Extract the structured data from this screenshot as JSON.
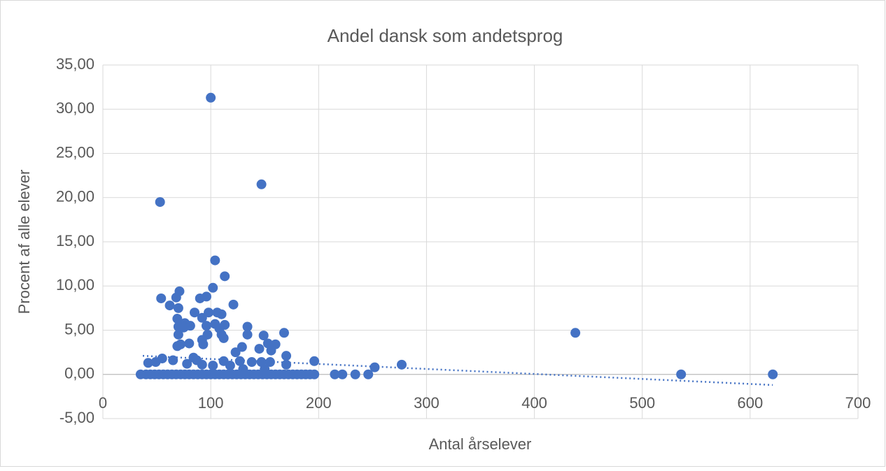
{
  "chart_data": {
    "type": "scatter",
    "title": "Andel dansk som andetsprog",
    "x_label": "Antal årselever",
    "y_label": "Procent af alle elever",
    "color": "#4472c4",
    "grid": true,
    "xlim": [
      0,
      700
    ],
    "xticks": [
      0,
      100,
      200,
      300,
      400,
      500,
      600,
      700
    ],
    "ylim": [
      -5,
      35
    ],
    "yticks": [
      {
        "value": -5,
        "label": "-5,00"
      },
      {
        "value": 0,
        "label": "0,00"
      },
      {
        "value": 5,
        "label": "5,00"
      },
      {
        "value": 10,
        "label": "10,00"
      },
      {
        "value": 15,
        "label": "15,00"
      },
      {
        "value": 20,
        "label": "20,00"
      },
      {
        "value": 25,
        "label": "25,00"
      },
      {
        "value": 30,
        "label": "30,00"
      },
      {
        "value": 35,
        "label": "35,00"
      }
    ],
    "x": [
      100,
      147,
      53,
      104,
      113,
      102,
      71,
      54,
      90,
      96,
      68,
      121,
      62,
      70,
      85,
      98,
      106,
      110,
      69,
      92,
      76,
      81,
      70,
      96,
      104,
      113,
      134,
      75,
      108,
      149,
      168,
      438,
      70,
      97,
      110,
      134,
      112,
      92,
      93,
      72,
      69,
      80,
      153,
      160,
      129,
      145,
      156,
      123,
      170,
      84,
      55,
      65,
      87,
      112,
      127,
      138,
      147,
      155,
      196,
      42,
      49,
      78,
      92,
      102,
      118,
      170,
      277,
      252,
      130,
      150,
      35,
      40,
      44,
      48,
      52,
      56,
      60,
      64,
      68,
      72,
      76,
      80,
      84,
      88,
      92,
      96,
      100,
      104,
      108,
      112,
      116,
      120,
      124,
      128,
      132,
      136,
      140,
      144,
      148,
      152,
      156,
      160,
      164,
      168,
      172,
      176,
      180,
      184,
      188,
      192,
      196,
      215,
      222,
      234,
      246,
      536,
      621
    ],
    "values": [
      31.3,
      21.5,
      19.5,
      12.9,
      11.1,
      9.8,
      9.4,
      8.6,
      8.6,
      8.8,
      8.7,
      7.9,
      7.8,
      7.5,
      7.0,
      7.0,
      7.0,
      6.8,
      6.3,
      6.4,
      5.8,
      5.5,
      5.4,
      5.5,
      5.7,
      5.6,
      5.4,
      5.3,
      5.2,
      4.4,
      4.7,
      4.7,
      4.5,
      4.5,
      4.5,
      4.5,
      4.1,
      3.9,
      3.4,
      3.4,
      3.2,
      3.5,
      3.5,
      3.4,
      3.1,
      2.9,
      2.7,
      2.5,
      2.1,
      1.9,
      1.8,
      1.6,
      1.6,
      1.5,
      1.5,
      1.4,
      1.4,
      1.4,
      1.5,
      1.3,
      1.4,
      1.2,
      1.1,
      1.0,
      1.0,
      1.1,
      1.1,
      0.8,
      0.6,
      0.6,
      0,
      0,
      0,
      0,
      0,
      0,
      0,
      0,
      0,
      0,
      0,
      0,
      0,
      0,
      0,
      0,
      0,
      0,
      0,
      0,
      0,
      0,
      0,
      0,
      0,
      0,
      0,
      0,
      0,
      0,
      0,
      0,
      0,
      0,
      0,
      0,
      0,
      0,
      0,
      0,
      0,
      0,
      0,
      0,
      0,
      0,
      0
    ],
    "trendline": {
      "x": [
        37,
        621
      ],
      "values": [
        2.1,
        -1.2
      ]
    }
  }
}
